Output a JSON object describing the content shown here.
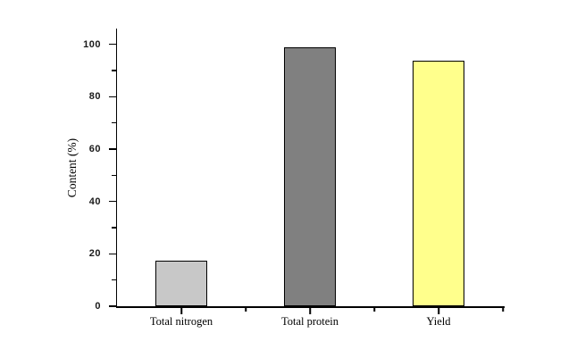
{
  "figure": {
    "background": "#ffffff"
  },
  "chart_data": {
    "type": "bar",
    "title": "",
    "xlabel": "",
    "ylabel": "Content (%)",
    "categories": [
      "Total nitrogen",
      "Total protein",
      "Yield"
    ],
    "values": [
      17.4,
      98.9,
      93.7
    ],
    "ylim": [
      0,
      106
    ],
    "yticks": [
      0,
      20,
      40,
      60,
      80,
      100
    ],
    "ytick_labels": [
      "0",
      "20",
      "40",
      "60",
      "80",
      "100"
    ],
    "minor_yticks": [
      10,
      30,
      50,
      70,
      90
    ],
    "grid": false,
    "legend": "none",
    "bar_colors": [
      "#c8c8c8",
      "#808080",
      "#ffff8c"
    ],
    "bar_edge_color": "#000000",
    "axis_color": "#000000",
    "tick_label_color": "#1a1a1a"
  }
}
